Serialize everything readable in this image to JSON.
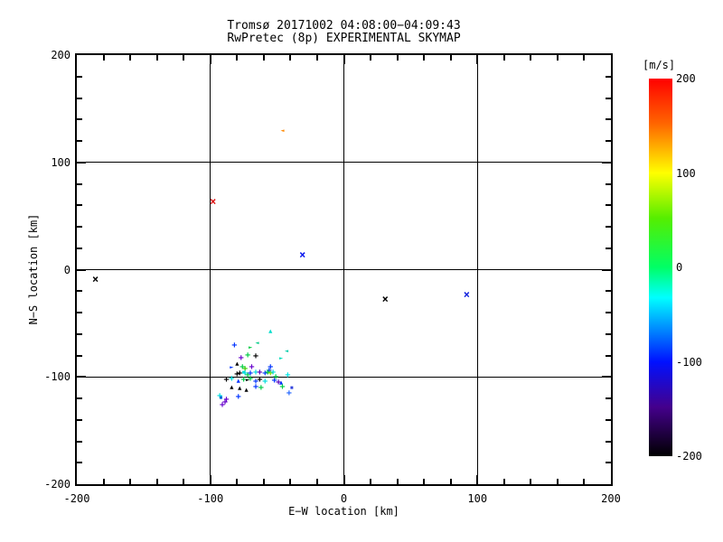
{
  "figure": {
    "title_line1": "Tromsø 20171002 04:08:00−04:09:43",
    "title_line2": "RwPretec (8p) EXPERIMENTAL SKYMAP"
  },
  "chart_data": {
    "type": "scatter",
    "title": "Tromsø 20171002 04:08:00−04:09:43",
    "subtitle": "RwPretec (8p) EXPERIMENTAL SKYMAP",
    "xlabel": "E−W location [km]",
    "ylabel": "N−S location [km]",
    "xlim": [
      -200,
      200
    ],
    "ylim": [
      -200,
      200
    ],
    "x_ticks": [
      -200,
      -100,
      0,
      100,
      200
    ],
    "x_tick_labels": [
      "-200",
      "-100",
      "0",
      "100",
      "200"
    ],
    "y_ticks": [
      -200,
      -100,
      0,
      100,
      200
    ],
    "y_tick_labels": [
      "-200",
      "-100",
      "0",
      "100",
      "200"
    ],
    "minor_tick_step": 20,
    "grid": true,
    "colorbar": {
      "label": "[m/s]",
      "min": -200,
      "max": 200,
      "ticks": [
        200,
        100,
        0,
        -100,
        -200
      ],
      "tick_labels": [
        "200",
        "100",
        "0",
        "-100",
        "-200"
      ],
      "gradient_stops": [
        {
          "pos": 0,
          "color": "#ff0000"
        },
        {
          "pos": 12,
          "color": "#ff6600"
        },
        {
          "pos": 25,
          "color": "#ffff00"
        },
        {
          "pos": 37,
          "color": "#55ee00"
        },
        {
          "pos": 50,
          "color": "#00ff66"
        },
        {
          "pos": 58,
          "color": "#00ffff"
        },
        {
          "pos": 75,
          "color": "#0011ff"
        },
        {
          "pos": 87,
          "color": "#44008c"
        },
        {
          "pos": 100,
          "color": "#000000"
        }
      ]
    },
    "marker_glyphs": {
      "plus": "+",
      "x": "×",
      "tri-up": "▲",
      "tri-right": "►",
      "tri-left": "◄",
      "dot": "■"
    },
    "marker_sizes": {
      "plus": 10,
      "x": 12,
      "tri-up": 7,
      "tri-right": 7,
      "tri-left": 7,
      "dot": 5
    },
    "points": [
      {
        "x": -46,
        "y": 129,
        "v": 150,
        "marker": "tri-left",
        "color": "#ff8800"
      },
      {
        "x": -98,
        "y": 64,
        "v": 190,
        "marker": "x",
        "color": "#dd1111"
      },
      {
        "x": -31,
        "y": 14,
        "v": -95,
        "marker": "x",
        "color": "#0011ee"
      },
      {
        "x": -186,
        "y": -9,
        "v": -190,
        "marker": "x",
        "color": "#000000"
      },
      {
        "x": 31,
        "y": -27,
        "v": -190,
        "marker": "x",
        "color": "#000000"
      },
      {
        "x": 92,
        "y": -23,
        "v": -110,
        "marker": "x",
        "color": "#1122dd"
      },
      {
        "x": -82,
        "y": -71,
        "v": -100,
        "marker": "plus",
        "color": "#0033ff"
      },
      {
        "x": -70,
        "y": -73,
        "v": 5,
        "marker": "tri-right",
        "color": "#00cc44"
      },
      {
        "x": -65,
        "y": -69,
        "v": -15,
        "marker": "tri-left",
        "color": "#00cc88"
      },
      {
        "x": -77,
        "y": -83,
        "v": -145,
        "marker": "plus",
        "color": "#6600cc"
      },
      {
        "x": -72,
        "y": -80,
        "v": 10,
        "marker": "plus",
        "color": "#00cc44"
      },
      {
        "x": -66,
        "y": -81,
        "v": -190,
        "marker": "plus",
        "color": "#000000"
      },
      {
        "x": -80,
        "y": -88,
        "v": -190,
        "marker": "tri-up",
        "color": "#000000"
      },
      {
        "x": -76,
        "y": -91,
        "v": 10,
        "marker": "plus",
        "color": "#00cc44"
      },
      {
        "x": -84,
        "y": -91,
        "v": -100,
        "marker": "tri-right",
        "color": "#0033ff"
      },
      {
        "x": -74,
        "y": -93,
        "v": 15,
        "marker": "plus",
        "color": "#33cc00"
      },
      {
        "x": -69,
        "y": -91,
        "v": -145,
        "marker": "plus",
        "color": "#6600cc"
      },
      {
        "x": -75,
        "y": -96,
        "v": -45,
        "marker": "dot",
        "color": "#00dddd"
      },
      {
        "x": -47,
        "y": -83,
        "v": -25,
        "marker": "tri-right",
        "color": "#00ddbb"
      },
      {
        "x": -56,
        "y": -95,
        "v": -100,
        "marker": "plus",
        "color": "#0033ff"
      },
      {
        "x": -55,
        "y": -58,
        "v": -30,
        "marker": "tri-up",
        "color": "#00ddcc"
      },
      {
        "x": -43,
        "y": -76,
        "v": -25,
        "marker": "tri-left",
        "color": "#00ccaa"
      },
      {
        "x": -80,
        "y": -98,
        "v": -190,
        "marker": "plus",
        "color": "#000000"
      },
      {
        "x": -78,
        "y": -97,
        "v": -190,
        "marker": "plus",
        "color": "#000000"
      },
      {
        "x": -74,
        "y": -97,
        "v": -45,
        "marker": "plus",
        "color": "#00dddd"
      },
      {
        "x": -72,
        "y": -99,
        "v": 10,
        "marker": "plus",
        "color": "#00cc44"
      },
      {
        "x": -70,
        "y": -97,
        "v": -100,
        "marker": "plus",
        "color": "#0033ff"
      },
      {
        "x": -66,
        "y": -96,
        "v": -45,
        "marker": "plus",
        "color": "#00dddd"
      },
      {
        "x": -63,
        "y": -96,
        "v": -150,
        "marker": "plus",
        "color": "#5500bb"
      },
      {
        "x": -59,
        "y": -97,
        "v": -100,
        "marker": "plus",
        "color": "#0033ff"
      },
      {
        "x": -88,
        "y": -103,
        "v": -190,
        "marker": "plus",
        "color": "#000000"
      },
      {
        "x": -84,
        "y": -102,
        "v": -45,
        "marker": "plus",
        "color": "#00dddd"
      },
      {
        "x": -79,
        "y": -104,
        "v": -100,
        "marker": "tri-up",
        "color": "#0033ff"
      },
      {
        "x": -75,
        "y": -103,
        "v": 10,
        "marker": "plus",
        "color": "#00cc44"
      },
      {
        "x": -72,
        "y": -103,
        "v": -190,
        "marker": "tri-right",
        "color": "#000000"
      },
      {
        "x": -70,
        "y": -102,
        "v": 10,
        "marker": "plus",
        "color": "#00cc44"
      },
      {
        "x": -66,
        "y": -105,
        "v": -100,
        "marker": "plus",
        "color": "#0033ff"
      },
      {
        "x": -63,
        "y": -103,
        "v": -190,
        "marker": "plus",
        "color": "#000000"
      },
      {
        "x": -59,
        "y": -105,
        "v": -45,
        "marker": "plus",
        "color": "#00dddd"
      },
      {
        "x": -84,
        "y": -110,
        "v": -190,
        "marker": "tri-up",
        "color": "#000000"
      },
      {
        "x": -78,
        "y": -111,
        "v": -190,
        "marker": "tri-up",
        "color": "#000000"
      },
      {
        "x": -73,
        "y": -112,
        "v": -190,
        "marker": "tri-up",
        "color": "#000000"
      },
      {
        "x": -66,
        "y": -110,
        "v": -100,
        "marker": "plus",
        "color": "#0033ff"
      },
      {
        "x": -62,
        "y": -111,
        "v": 10,
        "marker": "plus",
        "color": "#00cc44"
      },
      {
        "x": -93,
        "y": -118,
        "v": -45,
        "marker": "plus",
        "color": "#00dddd"
      },
      {
        "x": -88,
        "y": -122,
        "v": -145,
        "marker": "plus",
        "color": "#6600cc"
      },
      {
        "x": -79,
        "y": -119,
        "v": -100,
        "marker": "plus",
        "color": "#0033ff"
      },
      {
        "x": -55,
        "y": -91,
        "v": -100,
        "marker": "plus",
        "color": "#0033ff"
      },
      {
        "x": -57,
        "y": -96,
        "v": 10,
        "marker": "plus",
        "color": "#00cc44"
      },
      {
        "x": -55,
        "y": -97,
        "v": 60,
        "marker": "plus",
        "color": "#88dd00"
      },
      {
        "x": -53,
        "y": -96,
        "v": -45,
        "marker": "plus",
        "color": "#00dddd"
      },
      {
        "x": -42,
        "y": -99,
        "v": -40,
        "marker": "plus",
        "color": "#00e5e5"
      },
      {
        "x": -51,
        "y": -101,
        "v": 10,
        "marker": "plus",
        "color": "#00cc44"
      },
      {
        "x": -52,
        "y": -104,
        "v": -100,
        "marker": "plus",
        "color": "#0033ff"
      },
      {
        "x": -49,
        "y": -106,
        "v": -150,
        "marker": "plus",
        "color": "#5500bb"
      },
      {
        "x": -47,
        "y": -106,
        "v": -100,
        "marker": "tri-up",
        "color": "#0033ff"
      },
      {
        "x": -46,
        "y": -110,
        "v": 10,
        "marker": "plus",
        "color": "#00cc44"
      },
      {
        "x": -41,
        "y": -116,
        "v": -85,
        "marker": "plus",
        "color": "#2266ff"
      },
      {
        "x": -39,
        "y": -111,
        "v": -80,
        "marker": "dot",
        "color": "#3344dd"
      },
      {
        "x": -92,
        "y": -120,
        "v": -80,
        "marker": "dot",
        "color": "#0066dd"
      },
      {
        "x": -89,
        "y": -124,
        "v": -145,
        "marker": "plus",
        "color": "#6600cc"
      },
      {
        "x": -91,
        "y": -127,
        "v": -145,
        "marker": "plus",
        "color": "#6600cc"
      }
    ]
  }
}
